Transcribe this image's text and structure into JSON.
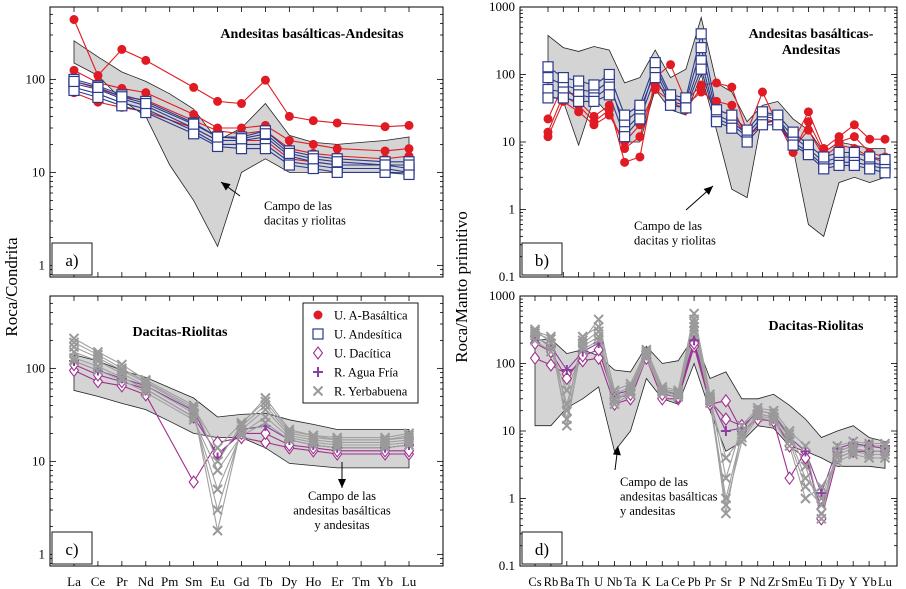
{
  "figure": {
    "y_label_left": "Roca/Condrita",
    "y_label_right": "Roca/Manto primitivo"
  },
  "legend": [
    {
      "label": "U. A-Basáltica",
      "marker": "filled-circle",
      "color": "#e01b24"
    },
    {
      "label": "U. Andesítica",
      "marker": "open-square",
      "color": "#2b3a8c"
    },
    {
      "label": "U. Dacítica",
      "marker": "open-diamond",
      "color": "#a0308f"
    },
    {
      "label": "R. Agua Fría",
      "marker": "plus",
      "color": "#8a3f9e"
    },
    {
      "label": "R. Yerbabuena",
      "marker": "cross",
      "color": "#9a9a9a"
    }
  ],
  "chart_data": [
    {
      "panel": "a)",
      "type": "line",
      "yscale": "log",
      "ylim": [
        0.75,
        600
      ],
      "yticks": [
        1,
        10,
        100
      ],
      "title": "Andesitas basálticas-Andesitas",
      "annotation": "Campo de las\ndacitas y riolitas",
      "categories": [
        "La",
        "Ce",
        "Pr",
        "Nd",
        "Pm",
        "Sm",
        "Eu",
        "Gd",
        "Tb",
        "Dy",
        "Ho",
        "Er",
        "Tm",
        "Yb",
        "Lu"
      ],
      "field": {
        "upper": [
          260,
          175,
          120,
          95,
          70,
          48,
          22,
          30,
          55,
          25,
          21,
          20,
          21,
          22,
          24
        ],
        "lower": [
          150,
          110,
          60,
          40,
          12,
          5,
          1.6,
          10,
          14,
          10,
          10,
          10,
          10,
          10,
          10
        ]
      },
      "series": [
        {
          "group": "U. A-Basáltica",
          "values": [
            440,
            110,
            210,
            160,
            null,
            82,
            58,
            55,
            98,
            40,
            36,
            34,
            null,
            31,
            32
          ]
        },
        {
          "group": "U. A-Basáltica",
          "values": [
            125,
            92,
            80,
            72,
            null,
            42,
            30,
            30,
            32,
            22,
            20,
            18,
            null,
            17,
            18
          ]
        },
        {
          "group": "U. A-Basáltica",
          "values": [
            72,
            57,
            50,
            45,
            null,
            30,
            22,
            22,
            22,
            14,
            13,
            12,
            null,
            12,
            12
          ]
        },
        {
          "group": "U. A-Basáltica",
          "values": [
            95,
            80,
            65,
            60,
            null,
            36,
            28,
            26,
            28,
            18,
            16,
            15,
            null,
            14,
            15
          ]
        },
        {
          "group": "U. Andesítica",
          "values": [
            100,
            85,
            68,
            58,
            null,
            34,
            24,
            24,
            28,
            17,
            15,
            14,
            null,
            13,
            13
          ]
        },
        {
          "group": "U. Andesítica",
          "values": [
            90,
            78,
            62,
            52,
            null,
            30,
            22,
            22,
            24,
            15,
            13,
            12,
            null,
            12,
            11
          ]
        },
        {
          "group": "U. Andesítica",
          "values": [
            82,
            70,
            56,
            48,
            null,
            28,
            20,
            20,
            20,
            13,
            12,
            11,
            null,
            11,
            10
          ]
        },
        {
          "group": "U. Andesítica",
          "values": [
            76,
            64,
            52,
            44,
            null,
            26,
            19,
            18,
            18,
            12,
            11,
            10,
            null,
            10,
            9.5
          ]
        },
        {
          "group": "U. Andesítica",
          "values": [
            95,
            82,
            65,
            55,
            null,
            33,
            24,
            23,
            26,
            16,
            14,
            13,
            null,
            12,
            12
          ]
        }
      ]
    },
    {
      "panel": "b)",
      "type": "line",
      "yscale": "log",
      "ylim": [
        0.1,
        1000
      ],
      "yticks": [
        0.1,
        1,
        10,
        100,
        1000
      ],
      "title": "Andesitas basálticas-\nAndesitas",
      "annotation": "Campo de las\ndacitas y riolitas",
      "categories": [
        "Cs",
        "Rb",
        "Ba",
        "Th",
        "U",
        "Nb",
        "Ta",
        "K",
        "La",
        "Ce",
        "Pb",
        "Pr",
        "Sr",
        "P",
        "Nd",
        "Zr",
        "Sm",
        "Eu",
        "Ti",
        "Dy",
        "Y",
        "Yb",
        "Lu"
      ],
      "field": {
        "upper": [
          380,
          250,
          220,
          260,
          230,
          75,
          90,
          230,
          90,
          120,
          700,
          75,
          55,
          20,
          35,
          40,
          22,
          15,
          7,
          10,
          9,
          8,
          8
        ],
        "lower": [
          50,
          40,
          9,
          45,
          25,
          10,
          10,
          60,
          30,
          25,
          100,
          15,
          2,
          1.5,
          25,
          25,
          8,
          0.6,
          0.4,
          2.5,
          3,
          2.5,
          3
        ]
      },
      "series": [
        {
          "group": "U. A-Basáltica",
          "values": [
            22,
            70,
            40,
            24,
            35,
            5,
            6,
            90,
            140,
            40,
            70,
            75,
            65,
            14,
            55,
            18,
            10,
            28,
            8,
            12,
            18,
            11,
            11
          ]
        },
        {
          "group": "U. A-Basáltica",
          "values": [
            14,
            50,
            35,
            20,
            30,
            8,
            12,
            70,
            50,
            35,
            55,
            40,
            35,
            11,
            22,
            20,
            7,
            20,
            7,
            10,
            12,
            7,
            6
          ]
        },
        {
          "group": "U. A-Basáltica",
          "values": [
            12,
            40,
            28,
            18,
            25,
            10,
            18,
            60,
            40,
            30,
            65,
            30,
            25,
            12,
            18,
            22,
            8,
            15,
            6,
            9,
            8,
            6,
            5
          ]
        },
        {
          "group": "U. Andesítica",
          "values": [
            90,
            70,
            60,
            55,
            80,
            15,
            25,
            130,
            45,
            40,
            250,
            25,
            20,
            13,
            24,
            22,
            12,
            8,
            5,
            6,
            6,
            5,
            4.5
          ]
        },
        {
          "group": "U. Andesítica",
          "values": [
            60,
            55,
            50,
            45,
            65,
            20,
            30,
            110,
            40,
            35,
            160,
            22,
            18,
            12,
            20,
            20,
            10,
            7,
            4.5,
            5,
            5,
            4.5,
            4
          ]
        },
        {
          "group": "U. Andesítica",
          "values": [
            130,
            90,
            80,
            70,
            100,
            25,
            35,
            150,
            50,
            45,
            400,
            30,
            25,
            15,
            28,
            25,
            14,
            9,
            6,
            7,
            7,
            6,
            5.5
          ]
        },
        {
          "group": "U. Andesítica",
          "values": [
            45,
            45,
            40,
            40,
            50,
            12,
            22,
            90,
            35,
            32,
            120,
            20,
            16,
            10,
            18,
            18,
            9,
            6.5,
            4,
            4.5,
            4.5,
            4,
            3.5
          ]
        }
      ]
    },
    {
      "panel": "c)",
      "type": "line",
      "yscale": "log",
      "ylim": [
        0.75,
        600
      ],
      "yticks": [
        1,
        10,
        100
      ],
      "title": "Dacitas-Riolitas",
      "annotation": "Campo de las\nandesitas basálticas\ny andesitas",
      "categories": [
        "La",
        "Ce",
        "Pr",
        "Nd",
        "Pm",
        "Sm",
        "Eu",
        "Gd",
        "Tb",
        "Dy",
        "Ho",
        "Er",
        "Tm",
        "Yb",
        "Lu"
      ],
      "field": {
        "upper": [
          140,
          120,
          95,
          80,
          62,
          48,
          30,
          32,
          33,
          28,
          25,
          22,
          22,
          22,
          22
        ],
        "lower": [
          58,
          50,
          42,
          36,
          27,
          20,
          18,
          18,
          14,
          9.5,
          9,
          8.5,
          8.5,
          8.5,
          8.5
        ]
      },
      "series": [
        {
          "group": "U. Dacítica",
          "values": [
            95,
            72,
            65,
            52,
            null,
            6,
            16,
            18,
            16,
            14,
            13,
            12,
            null,
            12,
            12
          ]
        },
        {
          "group": "U. Dacítica",
          "values": [
            110,
            85,
            72,
            60,
            null,
            30,
            12,
            20,
            20,
            15,
            14,
            13,
            null,
            13,
            13
          ]
        },
        {
          "group": "R. Agua Fría",
          "values": [
            120,
            95,
            78,
            65,
            null,
            35,
            11,
            22,
            24,
            17,
            15,
            14,
            null,
            14,
            15
          ]
        },
        {
          "group": "R. Yerbabuena",
          "values": [
            210,
            150,
            110,
            75,
            null,
            40,
            10,
            25,
            48,
            22,
            19,
            18,
            null,
            18,
            20
          ]
        },
        {
          "group": "R. Yerbabuena",
          "values": [
            170,
            130,
            95,
            70,
            null,
            36,
            1.8,
            24,
            40,
            20,
            18,
            17,
            null,
            17,
            18
          ]
        },
        {
          "group": "R. Yerbabuena",
          "values": [
            150,
            120,
            88,
            65,
            null,
            33,
            3,
            22,
            36,
            19,
            17,
            16,
            null,
            16,
            17
          ]
        },
        {
          "group": "R. Yerbabuena",
          "values": [
            130,
            105,
            80,
            60,
            null,
            30,
            5,
            20,
            30,
            18,
            16,
            15,
            null,
            15,
            16
          ]
        },
        {
          "group": "R. Yerbabuena",
          "values": [
            120,
            95,
            75,
            55,
            null,
            28,
            8,
            19,
            26,
            17,
            15,
            14,
            null,
            14,
            15
          ]
        },
        {
          "group": "R. Yerbabuena",
          "values": [
            190,
            140,
            100,
            72,
            null,
            38,
            14,
            26,
            44,
            21,
            19,
            17,
            null,
            17,
            19
          ]
        }
      ]
    },
    {
      "panel": "d)",
      "type": "line",
      "yscale": "log",
      "ylim": [
        0.1,
        1000
      ],
      "yticks": [
        0.1,
        1,
        10,
        100,
        1000
      ],
      "title": "Dacitas-Riolitas",
      "annotation": "Campo de las\nandesitas basálticas\ny andesitas",
      "categories": [
        "Cs",
        "Rb",
        "Ba",
        "Th",
        "U",
        "Nb",
        "Ta",
        "K",
        "La",
        "Ce",
        "Pb",
        "Pr",
        "Sr",
        "P",
        "Nd",
        "Zr",
        "Sm",
        "Eu",
        "Ti",
        "Dy",
        "Y",
        "Yb",
        "Lu"
      ],
      "field": {
        "upper": [
          220,
          230,
          140,
          160,
          130,
          80,
          75,
          180,
          100,
          110,
          250,
          60,
          75,
          30,
          30,
          35,
          24,
          15,
          8,
          10,
          12,
          8,
          7
        ],
        "lower": [
          12,
          12,
          22,
          30,
          45,
          5,
          10,
          60,
          30,
          25,
          100,
          20,
          5,
          7,
          12,
          11,
          6,
          5,
          4,
          3,
          3,
          3,
          2.8
        ]
      },
      "series": [
        {
          "group": "U. Dacítica",
          "values": [
            120,
            95,
            70,
            110,
            120,
            25,
            30,
            120,
            30,
            30,
            180,
            25,
            28,
            10,
            15,
            14,
            2,
            5,
            0.5,
            4,
            5,
            5,
            5
          ]
        },
        {
          "group": "U. Dacítica",
          "values": [
            200,
            150,
            60,
            130,
            160,
            30,
            35,
            140,
            35,
            32,
            200,
            28,
            15,
            12,
            18,
            16,
            6,
            4,
            0.7,
            5,
            6,
            6,
            5.5
          ]
        },
        {
          "group": "R. Agua Fría",
          "values": [
            250,
            180,
            80,
            150,
            200,
            35,
            40,
            150,
            40,
            35,
            220,
            30,
            10,
            11,
            20,
            18,
            8,
            5,
            1.2,
            5.5,
            6.5,
            6,
            6
          ]
        },
        {
          "group": "R. Yerbabuena",
          "values": [
            300,
            250,
            20,
            250,
            350,
            40,
            50,
            160,
            45,
            40,
            550,
            35,
            2,
            12,
            22,
            20,
            10,
            6,
            0.5,
            6,
            7,
            6.5,
            6.5
          ]
        },
        {
          "group": "R. Yerbabuena",
          "values": [
            280,
            230,
            12,
            220,
            450,
            35,
            45,
            150,
            42,
            38,
            450,
            32,
            0.6,
            10,
            20,
            18,
            9,
            3,
            0.6,
            5,
            6,
            6,
            6
          ]
        },
        {
          "group": "R. Yerbabuena",
          "values": [
            320,
            200,
            15,
            200,
            300,
            30,
            40,
            140,
            40,
            36,
            400,
            30,
            1,
            9,
            18,
            16,
            8,
            2,
            1,
            4.5,
            5.5,
            5,
            5
          ]
        },
        {
          "group": "R. Yerbabuena",
          "values": [
            260,
            170,
            25,
            180,
            250,
            28,
            38,
            130,
            38,
            34,
            350,
            28,
            4,
            8,
            17,
            15,
            7,
            1.5,
            0.8,
            4,
            5,
            4.5,
            4.5
          ]
        },
        {
          "group": "R. Yerbabuena",
          "values": [
            220,
            150,
            40,
            160,
            220,
            25,
            35,
            120,
            36,
            32,
            300,
            26,
            0.8,
            7,
            16,
            14,
            6,
            1,
            1.5,
            3.5,
            4.5,
            4,
            4
          ]
        }
      ]
    }
  ]
}
